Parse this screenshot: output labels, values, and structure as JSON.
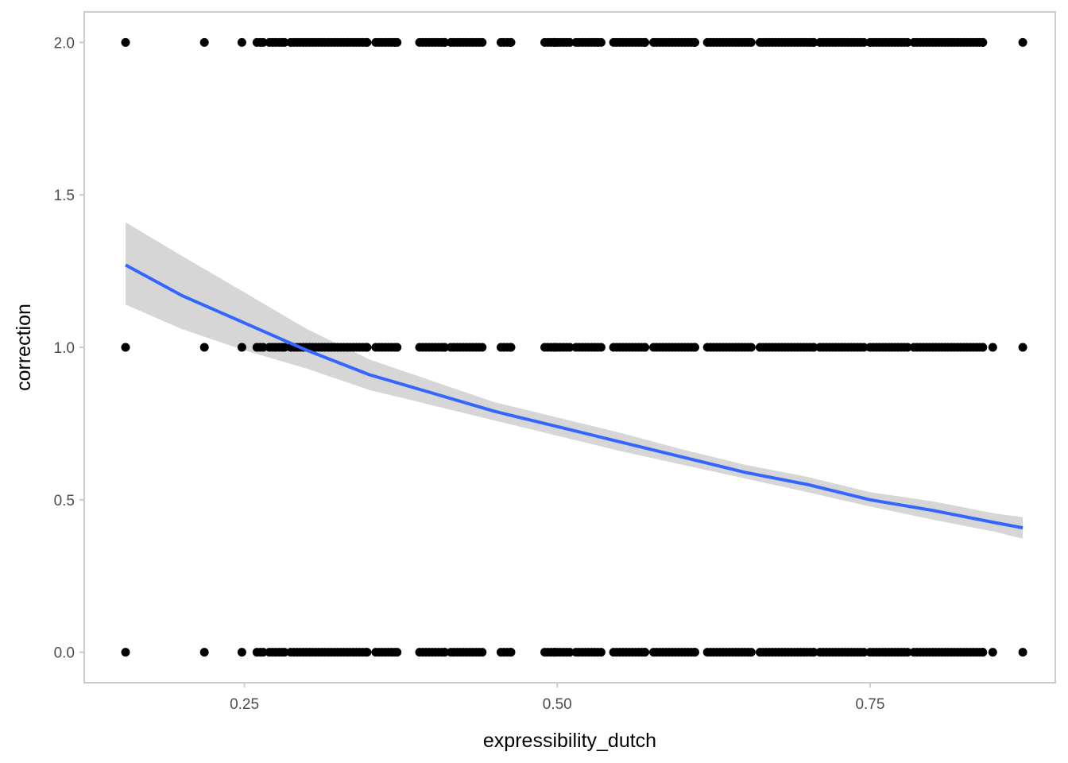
{
  "chart_data": {
    "type": "scatter",
    "title": "",
    "xlabel": "expressibility_dutch",
    "ylabel": "correction",
    "xlim": [
      0.122,
      0.898
    ],
    "ylim": [
      -0.1,
      2.1
    ],
    "x_ticks": [
      0.25,
      0.5,
      0.75
    ],
    "x_tick_labels": [
      "0.25",
      "0.50",
      "0.75"
    ],
    "y_ticks": [
      0.0,
      0.5,
      1.0,
      1.5,
      2.0
    ],
    "y_tick_labels": [
      "0.0",
      "0.5",
      "1.0",
      "1.5",
      "2.0"
    ],
    "grid": false,
    "legend": "none",
    "colors": {
      "points": "#000000",
      "fit_line": "#3366ff",
      "confidence_band": "#c8c8c8",
      "panel_border": "#cccccc"
    },
    "point_levels": [
      0,
      1,
      2
    ],
    "points_x_clusters": [
      {
        "from": 0.155,
        "to": 0.155
      },
      {
        "from": 0.218,
        "to": 0.218
      },
      {
        "from": 0.248,
        "to": 0.248
      },
      {
        "from": 0.26,
        "to": 0.265
      },
      {
        "from": 0.27,
        "to": 0.282
      },
      {
        "from": 0.287,
        "to": 0.348
      },
      {
        "from": 0.355,
        "to": 0.372
      },
      {
        "from": 0.39,
        "to": 0.41
      },
      {
        "from": 0.415,
        "to": 0.44
      },
      {
        "from": 0.455,
        "to": 0.463
      },
      {
        "from": 0.49,
        "to": 0.498
      },
      {
        "from": 0.5,
        "to": 0.51
      },
      {
        "from": 0.515,
        "to": 0.535
      },
      {
        "from": 0.545,
        "to": 0.57
      },
      {
        "from": 0.577,
        "to": 0.61
      },
      {
        "from": 0.62,
        "to": 0.655
      },
      {
        "from": 0.662,
        "to": 0.705
      },
      {
        "from": 0.71,
        "to": 0.745
      },
      {
        "from": 0.75,
        "to": 0.78
      },
      {
        "from": 0.785,
        "to": 0.84
      }
    ],
    "extra_points": [
      {
        "x": 0.848,
        "y": 1
      },
      {
        "x": 0.848,
        "y": 0
      },
      {
        "x": 0.872,
        "y": 2
      },
      {
        "x": 0.872,
        "y": 1
      },
      {
        "x": 0.872,
        "y": 0
      }
    ],
    "fit": {
      "method": "glm (poisson)",
      "x": [
        0.155,
        0.2,
        0.25,
        0.3,
        0.35,
        0.4,
        0.45,
        0.5,
        0.55,
        0.6,
        0.65,
        0.7,
        0.75,
        0.8,
        0.85,
        0.872
      ],
      "y": [
        1.27,
        1.17,
        1.08,
        0.99,
        0.91,
        0.85,
        0.79,
        0.74,
        0.69,
        0.64,
        0.59,
        0.55,
        0.5,
        0.465,
        0.425,
        0.408
      ],
      "lower": [
        1.14,
        1.06,
        0.99,
        0.93,
        0.86,
        0.81,
        0.76,
        0.71,
        0.66,
        0.615,
        0.57,
        0.525,
        0.478,
        0.435,
        0.395,
        0.372
      ],
      "upper": [
        1.41,
        1.3,
        1.18,
        1.06,
        0.96,
        0.89,
        0.82,
        0.77,
        0.72,
        0.665,
        0.615,
        0.575,
        0.525,
        0.495,
        0.455,
        0.443
      ]
    }
  }
}
